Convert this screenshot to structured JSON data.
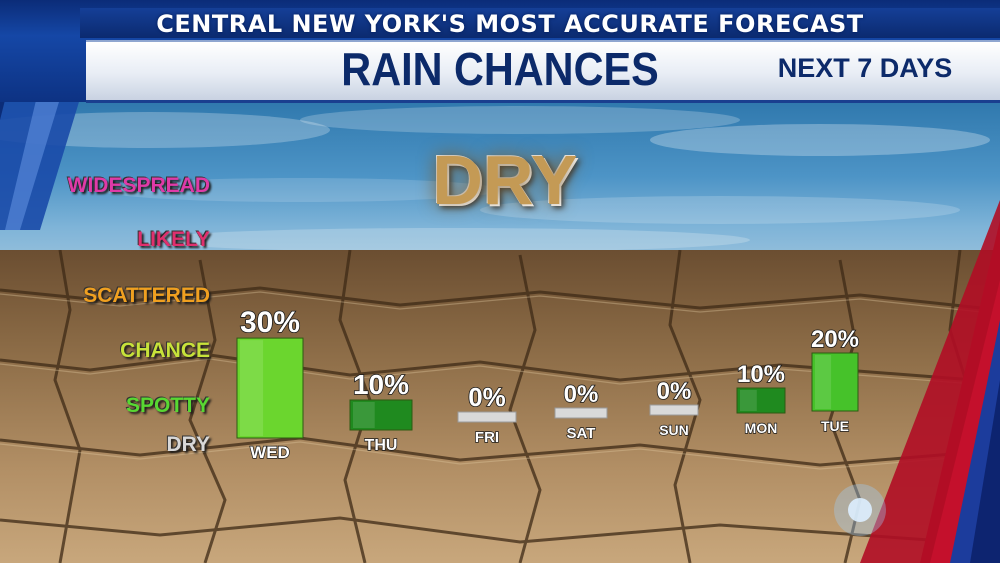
{
  "header": {
    "subtitle": "CENTRAL NEW YORK'S MOST ACCURATE FORECAST",
    "title": "RAIN CHANCES",
    "period": "NEXT 7 DAYS"
  },
  "badge": {
    "text": "DRY"
  },
  "categories": [
    {
      "label": "WIDESPREAD",
      "color": "#e03aa8"
    },
    {
      "label": "LIKELY",
      "color": "#e0306e"
    },
    {
      "label": "SCATTERED",
      "color": "#f0a020"
    },
    {
      "label": "CHANCE",
      "color": "#c8e23a"
    },
    {
      "label": "SPOTTY",
      "color": "#58d832"
    },
    {
      "label": "DRY",
      "color": "#d8d8d8"
    }
  ],
  "chart_data": {
    "type": "bar",
    "categories": [
      "WED",
      "THU",
      "FRI",
      "SAT",
      "SUN",
      "MON",
      "TUE"
    ],
    "values": [
      30,
      10,
      0,
      0,
      0,
      10,
      20
    ],
    "value_labels": [
      "30%",
      "10%",
      "0%",
      "0%",
      "0%",
      "10%",
      "20%"
    ],
    "ylim": [
      0,
      30
    ],
    "grid": false,
    "colors": {
      "high": "#6bd62e",
      "mid": "#46c22a",
      "low": "#1f8a1f",
      "zero": "#d9d9d9"
    }
  }
}
